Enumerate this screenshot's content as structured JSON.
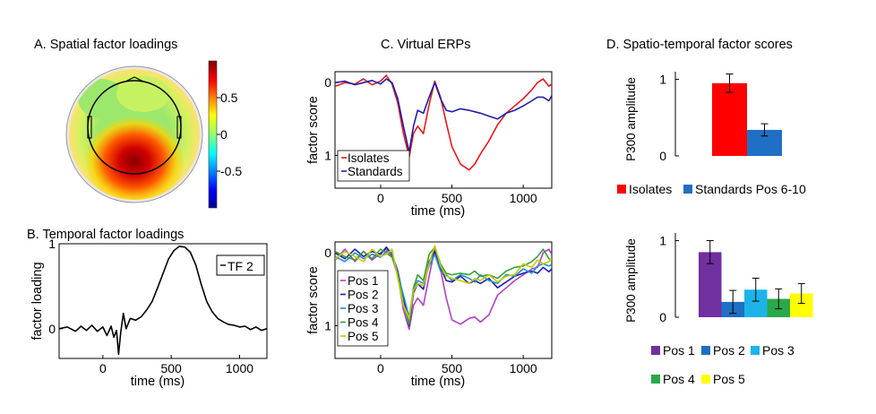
{
  "panels": {
    "a_title": "A. Spatial factor loadings",
    "b_title": "B. Temporal factor loadings",
    "c_title": "C. Virtual ERPs",
    "d_title": "D. Spatio-temporal factor scores"
  },
  "colors": {
    "isolates": "#e41a1c",
    "standards": "#1f1fa8",
    "bar_red": "#ff0000",
    "bar_blue": "#1f6fc4",
    "pos1": "#b040c8",
    "pos2": "#1f1fa8",
    "pos3": "#2090d0",
    "pos4": "#3c9e3c",
    "pos5": "#c8c800",
    "bar_pos1": "#7030a0",
    "bar_pos2": "#1f6fc4",
    "bar_pos3": "#1cb4e8",
    "bar_pos4": "#2aa84a",
    "bar_pos5": "#ffff00"
  },
  "chart_data": [
    {
      "id": "colorbar",
      "type": "heatmap",
      "title": "A. Spatial factor loadings",
      "ticks": [
        "0.5",
        "0",
        "-0.5"
      ],
      "tick_values": [
        0.5,
        0,
        -0.5
      ],
      "range": [
        -1,
        1
      ]
    },
    {
      "id": "temporal",
      "type": "line",
      "title": "B. Temporal factor loadings",
      "xlabel": "time (ms)",
      "ylabel": "factor loading",
      "xlim": [
        -320,
        1200
      ],
      "ylim": [
        -0.35,
        1.0
      ],
      "xticks": [
        0,
        500,
        1000
      ],
      "xtick_labels": [
        "0",
        "500",
        "1000"
      ],
      "yticks": [
        0,
        1
      ],
      "ytick_labels": [
        "0",
        "1"
      ],
      "legend": "TF 2",
      "x": [
        -320,
        -260,
        -200,
        -160,
        -120,
        -80,
        -40,
        0,
        30,
        60,
        80,
        100,
        115,
        130,
        150,
        170,
        200,
        240,
        280,
        320,
        360,
        400,
        440,
        480,
        520,
        560,
        600,
        640,
        680,
        720,
        760,
        800,
        840,
        880,
        920,
        960,
        1000,
        1040,
        1080,
        1120,
        1160,
        1200
      ],
      "y": [
        0.0,
        0.02,
        -0.03,
        0.03,
        -0.02,
        0.04,
        -0.03,
        0.02,
        -0.08,
        0.03,
        -0.1,
        -0.02,
        -0.3,
        -0.05,
        0.18,
        0.0,
        0.12,
        0.1,
        0.14,
        0.22,
        0.32,
        0.48,
        0.65,
        0.82,
        0.92,
        0.97,
        0.96,
        0.9,
        0.75,
        0.52,
        0.32,
        0.2,
        0.12,
        0.08,
        0.05,
        0.04,
        0.02,
        0.03,
        -0.01,
        0.02,
        -0.02,
        0.0
      ]
    },
    {
      "id": "erp_iso_std",
      "type": "line",
      "xlabel": "time (ms)",
      "ylabel": "factor score",
      "xlim": [
        -320,
        1200
      ],
      "ylim": [
        -0.15,
        1.45
      ],
      "xticks": [
        0,
        500,
        1000
      ],
      "xtick_labels": [
        "0",
        "500",
        "1000"
      ],
      "yticks": [
        0,
        1
      ],
      "ytick_labels": [
        "0",
        "1"
      ],
      "legend_position": "bottom-left",
      "x": [
        -320,
        -250,
        -180,
        -120,
        -60,
        0,
        40,
        80,
        120,
        160,
        200,
        230,
        260,
        300,
        340,
        380,
        420,
        460,
        500,
        560,
        620,
        660,
        700,
        760,
        820,
        880,
        940,
        1000,
        1060,
        1100,
        1140,
        1180,
        1200
      ],
      "series": [
        {
          "name": "Isolates",
          "values": [
            0.05,
            0.0,
            0.02,
            -0.05,
            0.03,
            -0.02,
            -0.1,
            0.02,
            0.28,
            0.7,
            1.02,
            0.7,
            0.6,
            0.7,
            0.3,
            -0.02,
            0.2,
            0.55,
            0.88,
            1.12,
            1.2,
            1.12,
            0.98,
            0.8,
            0.58,
            0.42,
            0.32,
            0.22,
            0.1,
            0.0,
            -0.05,
            0.05,
            0.02
          ]
        },
        {
          "name": "Standards",
          "values": [
            0.0,
            -0.02,
            0.03,
            0.0,
            -0.03,
            0.02,
            -0.05,
            0.0,
            0.22,
            0.6,
            0.95,
            0.6,
            0.38,
            0.42,
            0.2,
            0.0,
            0.22,
            0.38,
            0.4,
            0.36,
            0.38,
            0.4,
            0.42,
            0.46,
            0.5,
            0.42,
            0.38,
            0.32,
            0.25,
            0.2,
            0.2,
            0.25,
            0.18
          ]
        }
      ]
    },
    {
      "id": "erp_positions",
      "type": "line",
      "xlabel": "time (ms)",
      "ylabel": "factor score",
      "xlim": [
        -320,
        1200
      ],
      "ylim": [
        -0.15,
        1.45
      ],
      "xticks": [
        0,
        500,
        1000
      ],
      "xtick_labels": [
        "0",
        "500",
        "1000"
      ],
      "yticks": [
        0,
        1
      ],
      "ytick_labels": [
        "0",
        "1"
      ],
      "legend_position": "bottom-left",
      "x": [
        -320,
        -250,
        -180,
        -120,
        -60,
        0,
        40,
        80,
        120,
        160,
        200,
        230,
        260,
        300,
        340,
        380,
        420,
        460,
        500,
        560,
        620,
        660,
        700,
        760,
        820,
        880,
        940,
        1000,
        1060,
        1100,
        1140,
        1180,
        1200
      ],
      "series": [
        {
          "name": "Pos 1",
          "values": [
            0.1,
            -0.05,
            0.12,
            -0.02,
            0.1,
            0.0,
            -0.05,
            0.05,
            0.32,
            0.78,
            1.05,
            0.72,
            0.62,
            0.72,
            0.32,
            -0.05,
            0.22,
            0.62,
            0.92,
            0.98,
            0.9,
            0.88,
            0.95,
            0.85,
            0.58,
            0.48,
            0.38,
            0.3,
            0.22,
            0.2,
            0.0,
            -0.05,
            0.02
          ]
        },
        {
          "name": "Pos 2",
          "values": [
            0.0,
            0.08,
            -0.05,
            0.05,
            -0.02,
            0.02,
            -0.08,
            0.02,
            0.25,
            0.62,
            1.0,
            0.55,
            0.42,
            0.5,
            0.12,
            -0.02,
            0.2,
            0.38,
            0.4,
            0.32,
            0.42,
            0.38,
            0.42,
            0.35,
            0.48,
            0.4,
            0.32,
            0.28,
            0.25,
            0.28,
            0.2,
            0.26,
            0.22
          ]
        },
        {
          "name": "Pos 3",
          "values": [
            0.05,
            0.12,
            0.0,
            0.08,
            0.02,
            0.06,
            -0.02,
            0.0,
            0.3,
            0.58,
            0.88,
            0.5,
            0.38,
            0.42,
            0.18,
            0.02,
            0.25,
            0.3,
            0.38,
            0.3,
            0.35,
            0.4,
            0.3,
            0.38,
            0.42,
            0.3,
            0.32,
            0.22,
            0.28,
            0.18,
            0.15,
            0.18,
            0.16
          ]
        },
        {
          "name": "Pos 4",
          "values": [
            -0.02,
            0.05,
            0.1,
            -0.02,
            0.08,
            -0.05,
            0.0,
            0.06,
            0.28,
            0.7,
            0.98,
            0.48,
            0.3,
            0.38,
            0.02,
            -0.08,
            0.15,
            0.28,
            0.3,
            0.28,
            0.3,
            0.25,
            0.32,
            0.3,
            0.35,
            0.25,
            0.2,
            0.18,
            0.12,
            0.05,
            -0.05,
            0.08,
            0.1
          ]
        },
        {
          "name": "Pos 5",
          "values": [
            0.08,
            -0.02,
            0.05,
            0.12,
            -0.05,
            0.05,
            0.02,
            -0.05,
            0.35,
            0.72,
            0.9,
            0.52,
            0.42,
            0.45,
            0.15,
            -0.1,
            0.18,
            0.32,
            0.35,
            0.38,
            0.42,
            0.35,
            0.38,
            0.3,
            0.4,
            0.32,
            0.3,
            0.15,
            0.2,
            0.1,
            0.15,
            0.12,
            0.08
          ]
        }
      ]
    },
    {
      "id": "bars_iso_std",
      "type": "bar",
      "ylabel": "P300 amplitude",
      "ylim": [
        0,
        1.1
      ],
      "yticks": [
        0,
        1
      ],
      "ytick_labels": [
        "0",
        "1"
      ],
      "categories": [
        "Isolates",
        "Standards Pos 6-10"
      ],
      "values": [
        0.95,
        0.34
      ],
      "errors": [
        0.12,
        0.08
      ]
    },
    {
      "id": "bars_positions",
      "type": "bar",
      "ylabel": "P300 amplitude",
      "ylim": [
        0,
        1.1
      ],
      "yticks": [
        0,
        1
      ],
      "ytick_labels": [
        "0",
        "1"
      ],
      "categories": [
        "Pos 1",
        "Pos 2",
        "Pos 3",
        "Pos 4",
        "Pos 5"
      ],
      "values": [
        0.85,
        0.2,
        0.36,
        0.24,
        0.31
      ],
      "errors": [
        0.15,
        0.15,
        0.15,
        0.13,
        0.13
      ]
    }
  ]
}
